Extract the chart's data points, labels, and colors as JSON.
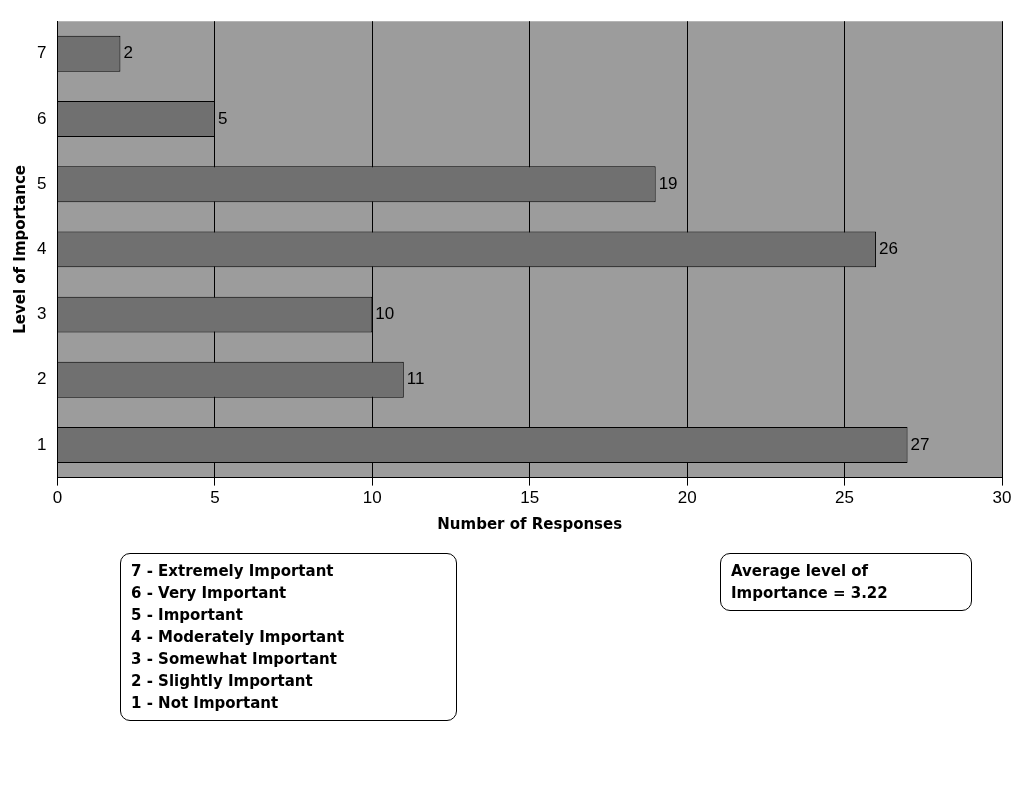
{
  "chart_data": {
    "type": "bar",
    "orientation": "horizontal",
    "xlabel": "Number of Responses",
    "ylabel": "Level of Importance",
    "categories": [
      "7",
      "6",
      "5",
      "4",
      "3",
      "2",
      "1"
    ],
    "values": [
      2,
      5,
      19,
      26,
      10,
      11,
      27
    ],
    "color": "#707070",
    "xlim": [
      0,
      30
    ],
    "xticks": [
      0,
      5,
      10,
      15,
      20,
      25,
      30
    ],
    "grid": "x",
    "data_labels": true,
    "legend": false,
    "annotations": [
      "7 - Extremely Important",
      "6 - Very Important",
      "5 - Important",
      "4 - Moderately Important",
      "3 - Somewhat Important",
      "2 - Slightly Important",
      "1 - Not Important",
      "Average level of Importance = 3.22"
    ]
  }
}
